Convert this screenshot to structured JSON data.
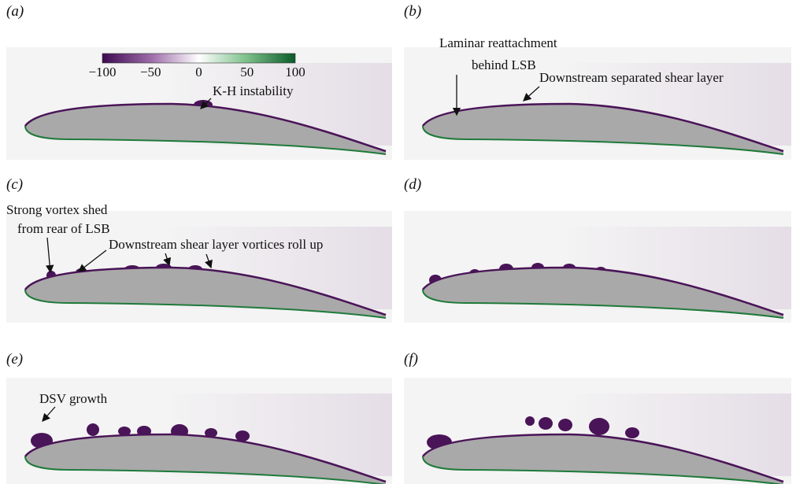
{
  "panels": [
    {
      "label": "(a)",
      "annotations": [
        [
          "K-H instability"
        ]
      ]
    },
    {
      "label": "(b)",
      "annotations": [
        [
          "Laminar reattachment",
          "behind LSB"
        ],
        [
          "Downstream separated shear layer"
        ]
      ]
    },
    {
      "label": "(c)",
      "annotations": [
        [
          "Strong vortex shed",
          "from rear of LSB"
        ],
        [
          "Downstream shear layer vortices roll up"
        ]
      ]
    },
    {
      "label": "(d)",
      "annotations": []
    },
    {
      "label": "(e)",
      "annotations": [
        [
          "DSV growth"
        ]
      ]
    },
    {
      "label": "(f)",
      "annotations": []
    }
  ],
  "colorbar": {
    "ticks": [
      "−100",
      "−50",
      "0",
      "50",
      "100"
    ]
  }
}
